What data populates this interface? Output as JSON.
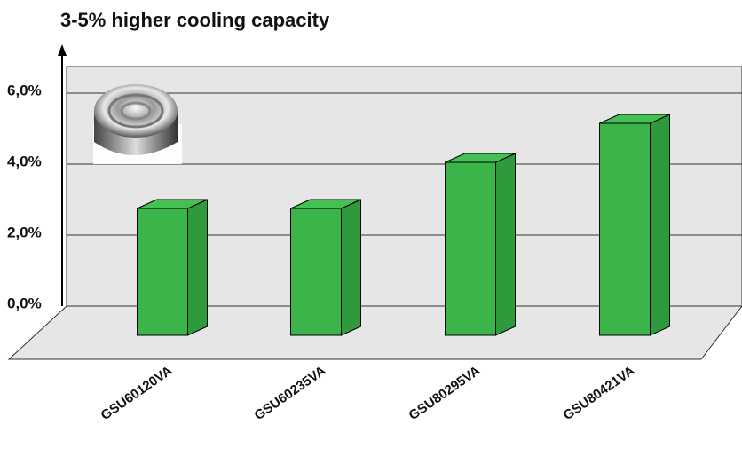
{
  "chart_data": {
    "type": "bar3d",
    "title": "3-5% higher cooling capacity",
    "categories": [
      "GSU60120VA",
      "GSU60235VA",
      "GSU80295VA",
      "GSU80421VA"
    ],
    "values": [
      3.0,
      3.0,
      4.3,
      5.4
    ],
    "color": "#3bb54a",
    "ylim": [
      0,
      6.75
    ],
    "yticks": [
      {
        "value": 0,
        "label": "0,0%"
      },
      {
        "value": 2,
        "label": "2,0%"
      },
      {
        "value": 4,
        "label": "4,0%"
      },
      {
        "value": 6,
        "label": "6,0%"
      }
    ],
    "grid": true
  }
}
